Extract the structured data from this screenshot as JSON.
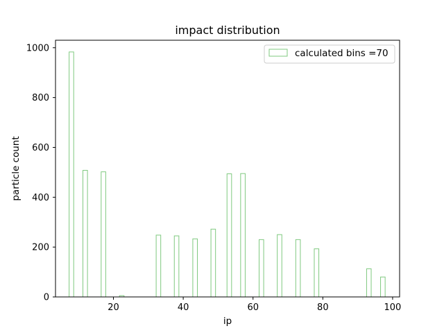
{
  "chart_data": {
    "type": "bar",
    "title": "impact distribution",
    "xlabel": "ip",
    "ylabel": "particle count",
    "xlim": [
      3.4,
      102
    ],
    "ylim": [
      0,
      1030
    ],
    "xticks": [
      20,
      40,
      60,
      80,
      100
    ],
    "yticks": [
      0,
      200,
      400,
      600,
      800,
      1000
    ],
    "grid": false,
    "legend_position": "top-right",
    "bar_color": "#7fc97f",
    "bar_fill": "none",
    "bin_width": 1.31,
    "series": [
      {
        "name": "calculated bins =70",
        "x": [
          7.96,
          11.91,
          17.14,
          22.39,
          32.9,
          38.1,
          43.4,
          48.6,
          53.2,
          57.1,
          62.4,
          67.6,
          72.9,
          78.2,
          93.2,
          97.2
        ],
        "values": [
          983,
          508,
          502,
          5,
          248,
          245,
          233,
          272,
          494,
          495,
          230,
          250,
          230,
          193,
          113,
          80
        ]
      }
    ]
  }
}
